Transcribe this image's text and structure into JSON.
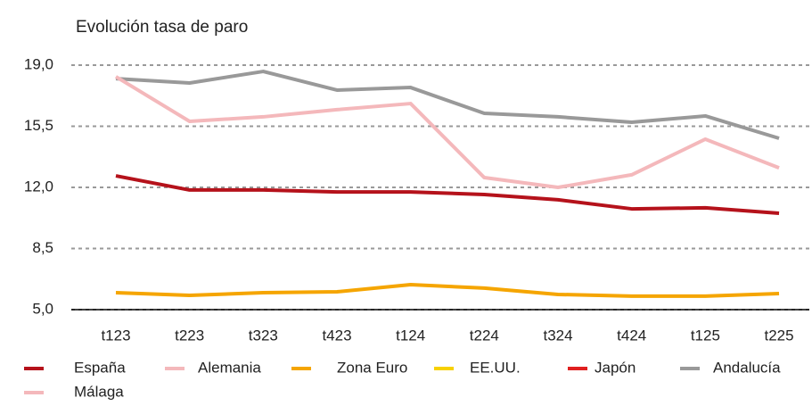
{
  "chart_data": {
    "type": "line",
    "title": "Evolución tasa de paro",
    "categories": [
      "t123",
      "t223",
      "t323",
      "t423",
      "t124",
      "t224",
      "t324",
      "t424",
      "t125",
      "t225"
    ],
    "series": [
      {
        "name": "España",
        "color": "#b5121b",
        "values": [
          12.66,
          11.85,
          11.85,
          11.74,
          11.74,
          11.59,
          11.29,
          10.77,
          10.83,
          10.52
        ]
      },
      {
        "name": "Alemania",
        "color": "#f4b8bb",
        "values": [
          null,
          null,
          null,
          null,
          null,
          null,
          null,
          null,
          null,
          null
        ]
      },
      {
        "name": "Zona Euro",
        "color": "#f5a500",
        "values": [
          5.97,
          5.82,
          5.97,
          6.02,
          6.43,
          6.23,
          5.87,
          5.77,
          5.77,
          5.92
        ]
      },
      {
        "name": "EE.UU.",
        "color": "#f7d100",
        "values": [
          null,
          null,
          null,
          null,
          null,
          null,
          null,
          null,
          null,
          null
        ]
      },
      {
        "name": "Japón",
        "color": "#e02020",
        "values": [
          null,
          null,
          null,
          null,
          null,
          null,
          null,
          null,
          null,
          null
        ]
      },
      {
        "name": "Andalucía",
        "color": "#999999",
        "values": [
          18.23,
          17.98,
          18.64,
          17.57,
          17.72,
          16.24,
          16.04,
          15.73,
          16.09,
          14.81
        ]
      },
      {
        "name": "Málaga",
        "color": "#f4b8bb",
        "values": [
          18.34,
          15.78,
          16.04,
          16.45,
          16.8,
          12.56,
          12.0,
          12.72,
          14.76,
          13.12
        ]
      }
    ],
    "ylim": [
      5.0,
      19.0
    ],
    "yticks": [
      {
        "value": 5.0,
        "label": "5,0"
      },
      {
        "value": 8.5,
        "label": "8,5"
      },
      {
        "value": 12.0,
        "label": "12,0"
      },
      {
        "value": 15.5,
        "label": "15,5"
      },
      {
        "value": 19.0,
        "label": "19,0"
      }
    ],
    "grid": true,
    "legend": "bottom"
  }
}
